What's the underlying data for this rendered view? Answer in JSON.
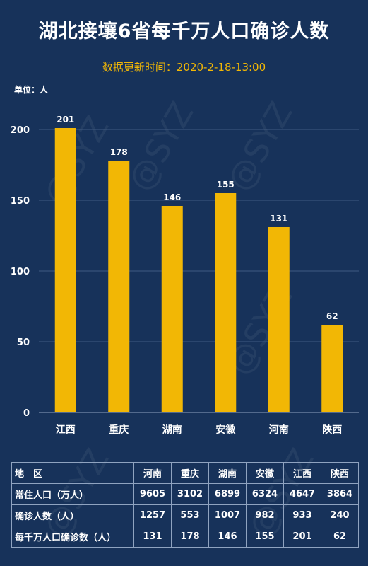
{
  "title": "湖北接壤6省每千万人口确诊人数",
  "subtitle": "数据更新时间：2020-2-18-13:00",
  "unit_label": "单位：人",
  "watermark": "@SYZ",
  "chart_data": {
    "type": "bar",
    "categories": [
      "江西",
      "重庆",
      "湖南",
      "安徽",
      "河南",
      "陕西"
    ],
    "values": [
      201,
      178,
      146,
      155,
      131,
      62
    ],
    "title": "湖北接壤6省每千万人口确诊人数",
    "ylim": [
      0,
      200
    ],
    "yticks": [
      0,
      50,
      100,
      150,
      200
    ],
    "grid": true,
    "bar_color": "#f2b705"
  },
  "table": {
    "header_label": "地　区",
    "columns": [
      "河南",
      "重庆",
      "湖南",
      "安徽",
      "江西",
      "陕西"
    ],
    "rows": [
      {
        "label": "常住人口（万人）",
        "values": [
          "9605",
          "3102",
          "6899",
          "6324",
          "4647",
          "3864"
        ]
      },
      {
        "label": "确诊人数（人）",
        "values": [
          "1257",
          "553",
          "1007",
          "982",
          "933",
          "240"
        ]
      },
      {
        "label": "每千万人口确诊数（人）",
        "values": [
          "131",
          "178",
          "146",
          "155",
          "201",
          "62"
        ]
      }
    ]
  },
  "colors": {
    "background": "#17325a",
    "bar": "#f2b705",
    "subtitle": "#f2b705",
    "grid": "#3f5a82"
  }
}
